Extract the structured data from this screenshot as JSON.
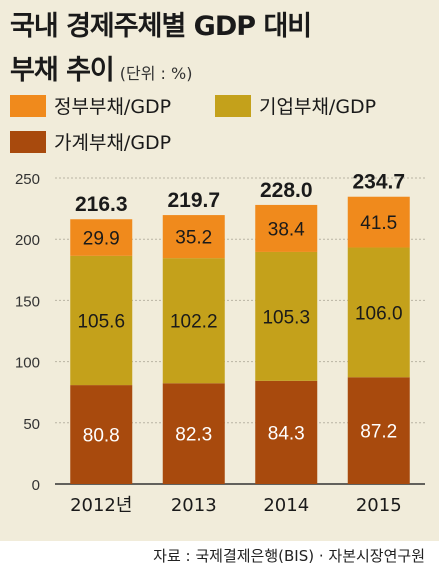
{
  "chart_data": {
    "type": "bar",
    "stacked": true,
    "title": "국내 경제주체별 GDP 대비",
    "title_line2": "부채 추이",
    "unit": "(단위 : %)",
    "categories": [
      "2012년",
      "2013",
      "2014",
      "2015"
    ],
    "series": [
      {
        "name": "가계부채/GDP",
        "color": "#a84a0d",
        "values": [
          80.8,
          82.3,
          84.3,
          87.2
        ]
      },
      {
        "name": "기업부채/GDP",
        "color": "#c4a11b",
        "values": [
          105.6,
          102.2,
          105.3,
          106.0
        ]
      },
      {
        "name": "정부부채/GDP",
        "color": "#f08a1c",
        "values": [
          29.9,
          35.2,
          38.4,
          41.5
        ]
      }
    ],
    "totals": [
      "216.3",
      "219.7",
      "228.0",
      "234.7"
    ],
    "yticks": [
      0,
      50,
      100,
      150,
      200,
      250
    ],
    "ylim": [
      0,
      250
    ],
    "grid": true,
    "legend_position": "top",
    "source": "자료 : 국제결제은행(BIS) · 자본시장연구원"
  }
}
